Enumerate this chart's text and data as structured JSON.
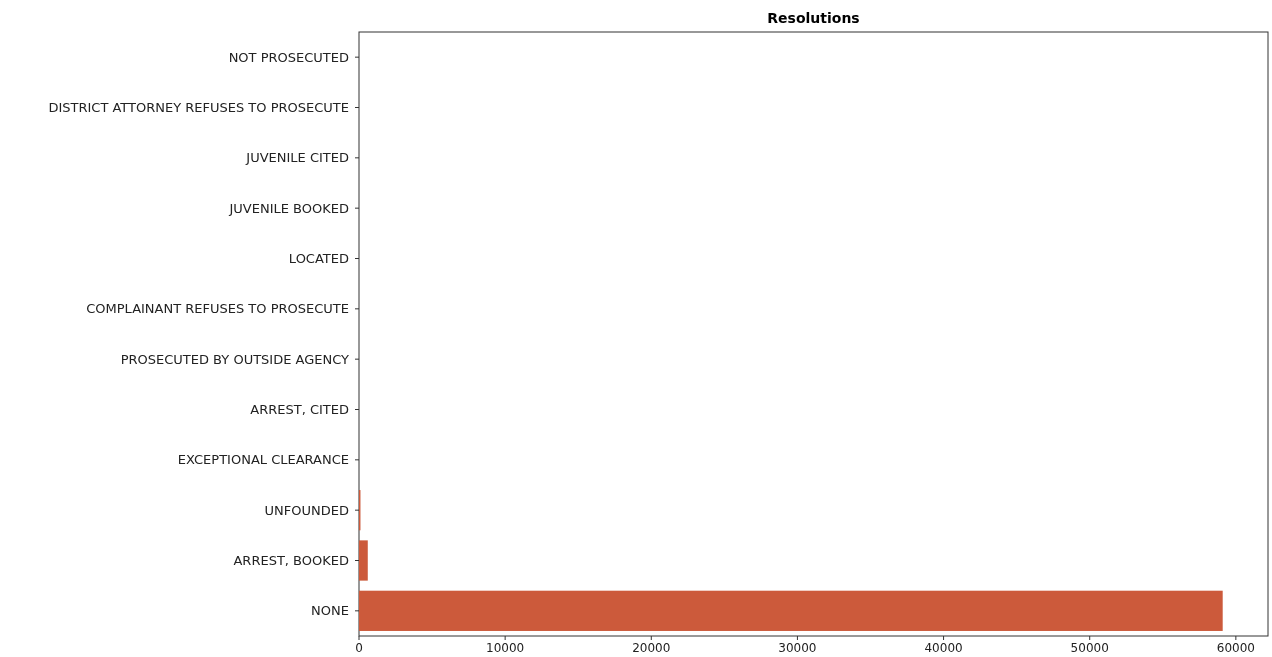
{
  "chart_data": {
    "type": "bar",
    "orientation": "horizontal",
    "title": "Resolutions",
    "categories": [
      "NOT PROSECUTED",
      "DISTRICT ATTORNEY REFUSES TO PROSECUTE",
      "JUVENILE CITED",
      "JUVENILE BOOKED",
      "LOCATED",
      "COMPLAINANT REFUSES TO PROSECUTE",
      "PROSECUTED BY OUTSIDE AGENCY",
      "ARREST, CITED",
      "EXCEPTIONAL CLEARANCE",
      "UNFOUNDED",
      "ARREST, BOOKED",
      "NONE"
    ],
    "values": [
      0,
      0,
      0,
      0,
      0,
      0,
      0,
      0,
      0,
      100,
      600,
      59100
    ],
    "color": "#cc5a3b",
    "xlim": [
      0,
      62200
    ],
    "xticks": [
      0,
      10000,
      20000,
      30000,
      40000,
      50000,
      60000
    ],
    "grid": false
  }
}
